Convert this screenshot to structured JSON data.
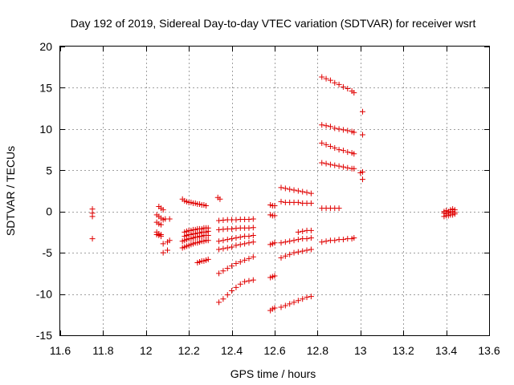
{
  "chart_data": {
    "type": "scatter",
    "title": "Day 192 of 2019, Sidereal Day-to-day VTEC variation (SDTVAR) for receiver wsrt",
    "xlabel": "GPS time / hours",
    "ylabel": "SDTVAR / TECUs",
    "xlim": [
      11.6,
      13.6
    ],
    "ylim": [
      -15,
      20
    ],
    "xticks": [
      11.6,
      11.8,
      12.0,
      12.2,
      12.4,
      12.6,
      12.8,
      13.0,
      13.2,
      13.4,
      13.6
    ],
    "xtick_labels": [
      "11.6",
      "11.8",
      "12",
      "12.2",
      "12.4",
      "12.6",
      "12.8",
      "13",
      "13.2",
      "13.4",
      "13.6"
    ],
    "yticks": [
      -15,
      -10,
      -5,
      0,
      5,
      10,
      15,
      20
    ],
    "ytick_labels": [
      "-15",
      "-10",
      "-5",
      "0",
      "5",
      "10",
      "15",
      "20"
    ],
    "grid": true,
    "marker_color": "#e00000",
    "series": [
      {
        "name": "t11.75",
        "x": [
          11.75,
          11.75,
          11.75,
          11.75
        ],
        "y": [
          0.3,
          -0.2,
          -0.6,
          -3.3
        ]
      },
      {
        "name": "t12.05a",
        "x": [
          12.06,
          12.07,
          12.08
        ],
        "y": [
          0.6,
          0.4,
          0.2
        ]
      },
      {
        "name": "t12.05b",
        "x": [
          12.05,
          12.06,
          12.07,
          12.08
        ],
        "y": [
          -0.4,
          -0.6,
          -0.8,
          -1.0
        ]
      },
      {
        "name": "t12.05c",
        "x": [
          12.05,
          12.06,
          12.07
        ],
        "y": [
          -1.3,
          -1.5,
          -1.6
        ]
      },
      {
        "name": "t12.05d",
        "x": [
          12.05,
          12.06,
          12.07
        ],
        "y": [
          -2.5,
          -2.7,
          -2.8
        ]
      },
      {
        "name": "t12.05e",
        "x": [
          12.05,
          12.06,
          12.07
        ],
        "y": [
          -2.8,
          -2.9,
          -3.0
        ]
      },
      {
        "name": "t12.1a",
        "x": [
          12.09,
          12.11
        ],
        "y": [
          -0.9,
          -0.9
        ]
      },
      {
        "name": "t12.1b",
        "x": [
          12.08,
          12.1,
          12.11
        ],
        "y": [
          -3.9,
          -3.7,
          -3.5
        ]
      },
      {
        "name": "t12.1c",
        "x": [
          12.08,
          12.1
        ],
        "y": [
          -5.0,
          -4.7
        ]
      },
      {
        "name": "a1",
        "x": [
          12.17,
          12.18,
          12.19,
          12.2,
          12.21,
          12.22,
          12.23,
          12.24,
          12.25,
          12.26,
          12.27,
          12.28
        ],
        "y": [
          1.5,
          1.3,
          1.2,
          1.1,
          1.1,
          1.0,
          1.0,
          0.9,
          0.9,
          0.8,
          0.8,
          0.7
        ]
      },
      {
        "name": "a2",
        "x": [
          12.18,
          12.19,
          12.2,
          12.21,
          12.22,
          12.23,
          12.24,
          12.25,
          12.26,
          12.27,
          12.28,
          12.29
        ],
        "y": [
          -2.5,
          -2.4,
          -2.3,
          -2.3,
          -2.2,
          -2.2,
          -2.1,
          -2.1,
          -2.1,
          -2.0,
          -2.0,
          -2.0
        ]
      },
      {
        "name": "a3",
        "x": [
          12.18,
          12.19,
          12.2,
          12.21,
          12.22,
          12.23,
          12.24,
          12.25,
          12.26,
          12.27,
          12.28,
          12.29
        ],
        "y": [
          -3.0,
          -2.9,
          -2.8,
          -2.8,
          -2.7,
          -2.7,
          -2.6,
          -2.6,
          -2.5,
          -2.5,
          -2.5,
          -2.4
        ]
      },
      {
        "name": "a4",
        "x": [
          12.17,
          12.18,
          12.19,
          12.2,
          12.21,
          12.22,
          12.23,
          12.24,
          12.25,
          12.26,
          12.27,
          12.28,
          12.29
        ],
        "y": [
          -3.6,
          -3.5,
          -3.4,
          -3.3,
          -3.3,
          -3.2,
          -3.1,
          -3.1,
          -3.0,
          -3.0,
          -2.9,
          -2.9,
          -2.9
        ]
      },
      {
        "name": "a5",
        "x": [
          12.17,
          12.18,
          12.19,
          12.2,
          12.21,
          12.22,
          12.23,
          12.24,
          12.25,
          12.26,
          12.27,
          12.28,
          12.29
        ],
        "y": [
          -4.4,
          -4.3,
          -4.2,
          -4.1,
          -4.0,
          -3.9,
          -3.8,
          -3.8,
          -3.7,
          -3.6,
          -3.6,
          -3.5,
          -3.5
        ]
      },
      {
        "name": "a6",
        "x": [
          12.24,
          12.25,
          12.26,
          12.27,
          12.28,
          12.29
        ],
        "y": [
          -6.2,
          -6.1,
          -6.0,
          -6.0,
          -5.9,
          -5.8
        ]
      },
      {
        "name": "b0",
        "x": [
          12.335,
          12.345
        ],
        "y": [
          1.7,
          1.5
        ]
      },
      {
        "name": "b1",
        "x": [
          12.34,
          12.36,
          12.38,
          12.4,
          12.42,
          12.44,
          12.46,
          12.48,
          12.5
        ],
        "y": [
          -1.1,
          -1.05,
          -1.0,
          -1.0,
          -1.0,
          -0.95,
          -0.95,
          -0.95,
          -0.9
        ]
      },
      {
        "name": "b2",
        "x": [
          12.34,
          12.36,
          12.38,
          12.4,
          12.42,
          12.44,
          12.46,
          12.48,
          12.5
        ],
        "y": [
          -2.2,
          -2.15,
          -2.1,
          -2.1,
          -2.05,
          -2.0,
          -2.0,
          -2.0,
          -1.95
        ]
      },
      {
        "name": "b3",
        "x": [
          12.34,
          12.36,
          12.38,
          12.4,
          12.42,
          12.44,
          12.46,
          12.48,
          12.5
        ],
        "y": [
          -3.6,
          -3.5,
          -3.4,
          -3.3,
          -3.2,
          -3.1,
          -3.0,
          -3.0,
          -2.9
        ]
      },
      {
        "name": "b4",
        "x": [
          12.34,
          12.36,
          12.38,
          12.4,
          12.42,
          12.44,
          12.46,
          12.48,
          12.5
        ],
        "y": [
          -4.6,
          -4.5,
          -4.4,
          -4.3,
          -4.1,
          -4.0,
          -3.9,
          -3.8,
          -3.7
        ]
      },
      {
        "name": "b5",
        "x": [
          12.34,
          12.36,
          12.38,
          12.4,
          12.42,
          12.44,
          12.46,
          12.48,
          12.5
        ],
        "y": [
          -7.5,
          -7.2,
          -6.9,
          -6.6,
          -6.3,
          -6.1,
          -5.9,
          -5.7,
          -5.5
        ]
      },
      {
        "name": "b6",
        "x": [
          12.34,
          12.36,
          12.38,
          12.4,
          12.42,
          12.44,
          12.46,
          12.48,
          12.5
        ],
        "y": [
          -11.0,
          -10.6,
          -10.1,
          -9.6,
          -9.2,
          -8.8,
          -8.5,
          -8.4,
          -8.3
        ]
      },
      {
        "name": "c0",
        "x": [
          12.58,
          12.59,
          12.6
        ],
        "y": [
          0.8,
          0.7,
          0.7
        ]
      },
      {
        "name": "c1",
        "x": [
          12.58,
          12.59,
          12.6
        ],
        "y": [
          -0.4,
          -0.5,
          -0.5
        ]
      },
      {
        "name": "c2",
        "x": [
          12.58,
          12.59,
          12.6
        ],
        "y": [
          -4.0,
          -3.9,
          -3.8
        ]
      },
      {
        "name": "c3",
        "x": [
          12.58,
          12.59,
          12.6
        ],
        "y": [
          -8.0,
          -7.9,
          -7.8
        ]
      },
      {
        "name": "c4",
        "x": [
          12.58,
          12.59,
          12.6
        ],
        "y": [
          -12.0,
          -11.8,
          -11.7
        ]
      },
      {
        "name": "d1",
        "x": [
          12.63,
          12.65,
          12.67,
          12.69,
          12.71,
          12.73,
          12.75,
          12.77
        ],
        "y": [
          2.9,
          2.8,
          2.7,
          2.6,
          2.5,
          2.4,
          2.3,
          2.2
        ]
      },
      {
        "name": "d2",
        "x": [
          12.63,
          12.65,
          12.67,
          12.69,
          12.71,
          12.73,
          12.75,
          12.77
        ],
        "y": [
          1.2,
          1.1,
          1.1,
          1.1,
          1.1,
          1.0,
          1.0,
          1.0
        ]
      },
      {
        "name": "d3",
        "x": [
          12.71,
          12.73,
          12.75,
          12.77
        ],
        "y": [
          -2.5,
          -2.4,
          -2.3,
          -2.3
        ]
      },
      {
        "name": "d4",
        "x": [
          12.63,
          12.65,
          12.67,
          12.69,
          12.71,
          12.73,
          12.75,
          12.77
        ],
        "y": [
          -3.8,
          -3.7,
          -3.6,
          -3.5,
          -3.4,
          -3.3,
          -3.3,
          -3.2
        ]
      },
      {
        "name": "d5",
        "x": [
          12.63,
          12.65,
          12.67,
          12.69,
          12.71,
          12.73,
          12.75,
          12.77
        ],
        "y": [
          -5.6,
          -5.4,
          -5.2,
          -5.0,
          -4.9,
          -4.8,
          -4.7,
          -4.6
        ]
      },
      {
        "name": "d6",
        "x": [
          12.63,
          12.65,
          12.67,
          12.69,
          12.71,
          12.73,
          12.75,
          12.77
        ],
        "y": [
          -11.6,
          -11.4,
          -11.2,
          -11.0,
          -10.8,
          -10.6,
          -10.4,
          -10.3
        ]
      },
      {
        "name": "e1",
        "x": [
          12.82,
          12.84,
          12.86,
          12.88,
          12.9,
          12.92,
          12.94,
          12.96,
          12.97
        ],
        "y": [
          16.3,
          16.1,
          15.9,
          15.6,
          15.4,
          15.1,
          14.9,
          14.6,
          14.4
        ]
      },
      {
        "name": "e2",
        "x": [
          12.82,
          12.84,
          12.86,
          12.88,
          12.9,
          12.92,
          12.94,
          12.96,
          12.97
        ],
        "y": [
          10.5,
          10.4,
          10.3,
          10.1,
          10.0,
          9.9,
          9.8,
          9.7,
          9.6
        ]
      },
      {
        "name": "e3",
        "x": [
          12.82,
          12.84,
          12.86,
          12.88,
          12.9,
          12.92,
          12.94,
          12.96,
          12.97
        ],
        "y": [
          8.3,
          8.1,
          7.9,
          7.7,
          7.5,
          7.4,
          7.2,
          7.1,
          7.0
        ]
      },
      {
        "name": "e4",
        "x": [
          12.82,
          12.84,
          12.86,
          12.88,
          12.9,
          12.92,
          12.94,
          12.96,
          12.97
        ],
        "y": [
          5.9,
          5.8,
          5.7,
          5.6,
          5.5,
          5.4,
          5.3,
          5.2,
          5.2
        ]
      },
      {
        "name": "e5",
        "x": [
          12.82,
          12.84,
          12.86,
          12.88,
          12.9
        ],
        "y": [
          0.4,
          0.4,
          0.4,
          0.4,
          0.4
        ]
      },
      {
        "name": "e6",
        "x": [
          12.82,
          12.84,
          12.86,
          12.88,
          12.9,
          12.92,
          12.94,
          12.96,
          12.97
        ],
        "y": [
          -3.7,
          -3.6,
          -3.5,
          -3.5,
          -3.4,
          -3.4,
          -3.3,
          -3.3,
          -3.2
        ]
      },
      {
        "name": "f1",
        "x": [
          13.01,
          13.01,
          13.01,
          13.01,
          13.0
        ],
        "y": [
          12.1,
          9.3,
          4.8,
          3.9,
          4.7
        ]
      },
      {
        "name": "g1",
        "x": [
          13.39,
          13.4,
          13.41,
          13.42,
          13.43,
          13.44
        ],
        "y": [
          0.0,
          0.1,
          0.0,
          0.2,
          0.3,
          0.2
        ]
      },
      {
        "name": "g2",
        "x": [
          13.39,
          13.4,
          13.41,
          13.42,
          13.43,
          13.44
        ],
        "y": [
          -0.2,
          -0.3,
          -0.1,
          -0.2,
          0.0,
          -0.1
        ]
      },
      {
        "name": "g3",
        "x": [
          13.39,
          13.4,
          13.41,
          13.42,
          13.43,
          13.44
        ],
        "y": [
          -0.6,
          -0.5,
          -0.5,
          -0.4,
          -0.4,
          -0.3
        ]
      }
    ]
  }
}
